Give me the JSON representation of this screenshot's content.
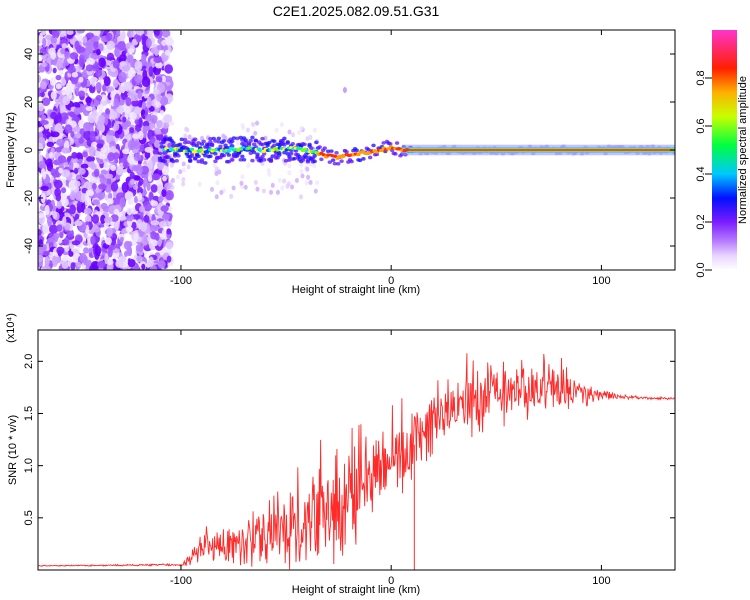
{
  "figure_title": "C2E1.2025.082.09.51.G31",
  "chart_data": [
    {
      "type": "heatmap",
      "xlabel": "Height of straight line (km)",
      "ylabel": "Frequency (Hz)",
      "xlim": [
        -168,
        135
      ],
      "ylim": [
        -50,
        50
      ],
      "x_ticks": [
        -100,
        0,
        100
      ],
      "x_tick_labels": [
        "-100",
        "0",
        "100"
      ],
      "y_ticks": [
        -40,
        -20,
        0,
        20,
        40
      ],
      "y_tick_labels": [
        "-40",
        "-20",
        "0",
        "20",
        "40"
      ],
      "ridge": [
        {
          "x": -110,
          "y": 0
        },
        {
          "x": -100,
          "y": 0
        },
        {
          "x": -90,
          "y": -0.5
        },
        {
          "x": -80,
          "y": 0
        },
        {
          "x": -70,
          "y": 0.5
        },
        {
          "x": -60,
          "y": 0
        },
        {
          "x": -50,
          "y": 0.5
        },
        {
          "x": -40,
          "y": 0
        },
        {
          "x": -33,
          "y": -2
        },
        {
          "x": -25,
          "y": -3
        },
        {
          "x": -15,
          "y": -1.5
        },
        {
          "x": -5,
          "y": 0
        },
        {
          "x": 0,
          "y": 1
        },
        {
          "x": 5,
          "y": 0
        },
        {
          "x": 135,
          "y": 0
        }
      ],
      "colorbar": {
        "label": "Normalized spectral amplitude",
        "ticks": [
          0.0,
          0.2,
          0.4,
          0.6,
          0.8
        ],
        "tick_labels": [
          "0.0",
          "0.2",
          "0.4",
          "0.6",
          "0.8"
        ],
        "colors": [
          "#ffffff",
          "#cc99ff",
          "#7a1cff",
          "#0000ff",
          "#00e5ff",
          "#00ff00",
          "#ffff00",
          "#ff8000",
          "#ff0000",
          "#ff33cc"
        ]
      }
    },
    {
      "type": "line",
      "xlabel": "Height of straight line (km)",
      "ylabel": "SNR (10 * v/v)",
      "y_multiplier": "(x10⁴)",
      "xlim": [
        -168,
        135
      ],
      "ylim": [
        0,
        2.3
      ],
      "x_ticks": [
        -100,
        0,
        100
      ],
      "x_tick_labels": [
        "-100",
        "0",
        "100"
      ],
      "y_ticks": [
        0.5,
        1.0,
        1.5,
        2.0
      ],
      "y_tick_labels": [
        "0.5",
        "1.0",
        "1.5",
        "2.0"
      ],
      "line_color": "#ff2a2a",
      "envelope": {
        "x": [
          -168,
          -100,
          -95,
          -90,
          -80,
          -70,
          -60,
          -50,
          -40,
          -30,
          -20,
          -10,
          0,
          10,
          20,
          30,
          40,
          50,
          60,
          70,
          80,
          90,
          100,
          110,
          120,
          135
        ],
        "mean": [
          0.04,
          0.05,
          0.12,
          0.2,
          0.25,
          0.28,
          0.3,
          0.38,
          0.45,
          0.55,
          0.7,
          0.85,
          1.05,
          1.2,
          1.4,
          1.55,
          1.65,
          1.7,
          1.68,
          1.72,
          1.75,
          1.7,
          1.68,
          1.66,
          1.65,
          1.64
        ],
        "amp": [
          0.005,
          0.01,
          0.08,
          0.15,
          0.2,
          0.22,
          0.25,
          0.35,
          0.5,
          0.6,
          0.5,
          0.45,
          0.4,
          0.4,
          0.35,
          0.3,
          0.4,
          0.35,
          0.25,
          0.25,
          0.3,
          0.15,
          0.05,
          0.02,
          0.015,
          0.01
        ]
      }
    }
  ]
}
